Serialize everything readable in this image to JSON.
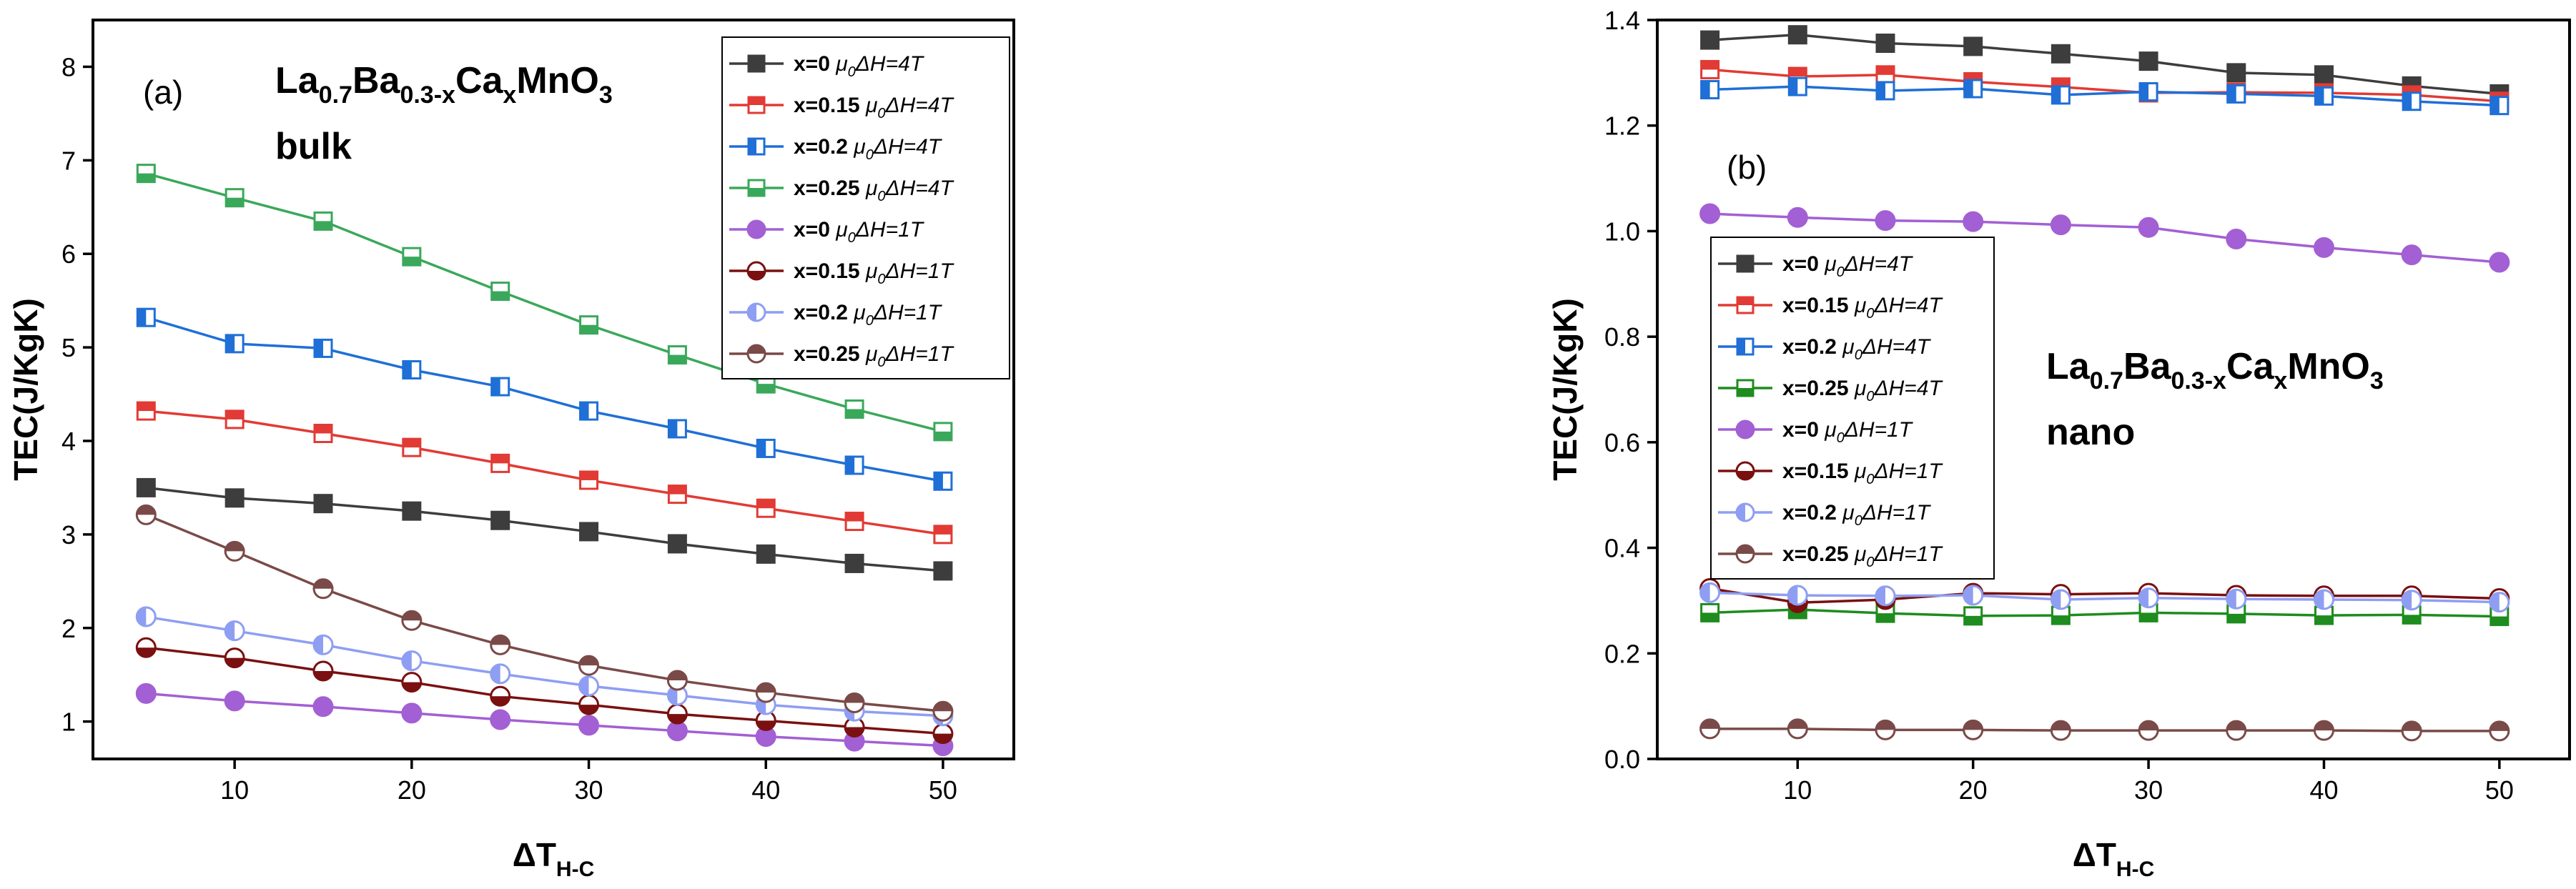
{
  "chart_data": [
    {
      "type": "line",
      "panel_label": "(a)",
      "title_formula": [
        "La",
        "0.7",
        "Ba",
        "0.3-x",
        "Ca",
        "x",
        "MnO",
        "3"
      ],
      "title_line2": "bulk",
      "xlabel": "ΔT",
      "xlabel_sub": "H-C",
      "ylabel": "TEC(J/KgK)",
      "xlim": [
        2,
        54
      ],
      "ylim": [
        0.6,
        8.5
      ],
      "xticks": [
        10,
        20,
        30,
        40,
        50
      ],
      "yticks": [
        1,
        2,
        3,
        4,
        5,
        6,
        7,
        8
      ],
      "ytick_decimals": 0,
      "legend_position": "top-right",
      "x": [
        5,
        10,
        15,
        20,
        25,
        30,
        35,
        40,
        45,
        50
      ],
      "series": [
        {
          "name": "x=0",
          "field": "μ0ΔH=4T",
          "color": "#3d3d3d",
          "marker": "square-filled",
          "values": [
            3.5,
            3.39,
            3.33,
            3.25,
            3.15,
            3.03,
            2.9,
            2.79,
            2.69,
            2.61
          ]
        },
        {
          "name": "x=0.15",
          "field": "μ0ΔH=4T",
          "color": "#e23a34",
          "marker": "square-top",
          "values": [
            4.32,
            4.23,
            4.08,
            3.93,
            3.76,
            3.58,
            3.43,
            3.28,
            3.14,
            3.0
          ]
        },
        {
          "name": "x=0.2",
          "field": "μ0ΔH=4T",
          "color": "#1f6fd6",
          "marker": "square-left",
          "values": [
            5.32,
            5.04,
            4.99,
            4.76,
            4.58,
            4.32,
            4.13,
            3.92,
            3.74,
            3.57
          ]
        },
        {
          "name": "x=0.25",
          "field": "μ0ΔH=4T",
          "color": "#3aa85a",
          "marker": "square-bottom",
          "values": [
            6.86,
            6.6,
            6.35,
            5.97,
            5.6,
            5.24,
            4.92,
            4.61,
            4.34,
            4.1
          ]
        },
        {
          "name": "x=0",
          "field": "μ0ΔH=1T",
          "color": "#a35fd4",
          "marker": "circle-filled",
          "values": [
            1.3,
            1.22,
            1.16,
            1.09,
            1.02,
            0.96,
            0.9,
            0.84,
            0.79,
            0.74
          ]
        },
        {
          "name": "x=0.15",
          "field": "μ0ΔH=1T",
          "color": "#7a1010",
          "marker": "circle-bottom",
          "values": [
            1.79,
            1.68,
            1.54,
            1.42,
            1.27,
            1.18,
            1.08,
            1.01,
            0.94,
            0.87
          ]
        },
        {
          "name": "x=0.2",
          "field": "μ0ΔH=1T",
          "color": "#8e9ef2",
          "marker": "circle-left",
          "values": [
            2.12,
            1.97,
            1.82,
            1.65,
            1.51,
            1.38,
            1.28,
            1.18,
            1.11,
            1.06
          ]
        },
        {
          "name": "x=0.25",
          "field": "μ0ΔH=1T",
          "color": "#7a4a48",
          "marker": "circle-top",
          "values": [
            3.21,
            2.82,
            2.42,
            2.08,
            1.82,
            1.6,
            1.44,
            1.31,
            1.2,
            1.11
          ]
        }
      ]
    },
    {
      "type": "line",
      "panel_label": "(b)",
      "title_formula": [
        "La",
        "0.7",
        "Ba",
        "0.3-x",
        "Ca",
        "x",
        "MnO",
        "3"
      ],
      "title_line2": "nano",
      "xlabel": "ΔT",
      "xlabel_sub": "H-C",
      "ylabel": "TEC(J/KgK)",
      "xlim": [
        2,
        54
      ],
      "ylim": [
        0.0,
        1.4
      ],
      "xticks": [
        10,
        20,
        30,
        40,
        50
      ],
      "yticks": [
        0.0,
        0.2,
        0.4,
        0.6,
        0.8,
        1.0,
        1.2,
        1.4
      ],
      "ytick_decimals": 1,
      "legend_position": "center-left",
      "x": [
        5,
        10,
        15,
        20,
        25,
        30,
        35,
        40,
        45,
        50
      ],
      "series": [
        {
          "name": "x=0",
          "field": "μ0ΔH=4T",
          "color": "#3d3d3d",
          "marker": "square-filled",
          "values": [
            1.362,
            1.372,
            1.356,
            1.35,
            1.336,
            1.322,
            1.3,
            1.296,
            1.275,
            1.26
          ]
        },
        {
          "name": "x=0.15",
          "field": "μ0ΔH=4T",
          "color": "#e23a34",
          "marker": "square-top",
          "values": [
            1.306,
            1.293,
            1.296,
            1.283,
            1.273,
            1.262,
            1.263,
            1.262,
            1.258,
            1.246
          ]
        },
        {
          "name": "x=0.2",
          "field": "μ0ΔH=4T",
          "color": "#1f6fd6",
          "marker": "square-left",
          "values": [
            1.268,
            1.274,
            1.266,
            1.27,
            1.258,
            1.264,
            1.26,
            1.256,
            1.246,
            1.238
          ]
        },
        {
          "name": "x=0.25",
          "field": "μ0ΔH=4T",
          "color": "#1e8c1e",
          "marker": "square-bottom",
          "values": [
            0.277,
            0.283,
            0.276,
            0.271,
            0.272,
            0.277,
            0.275,
            0.272,
            0.273,
            0.27
          ]
        },
        {
          "name": "x=0",
          "field": "μ0ΔH=1T",
          "color": "#a35fd4",
          "marker": "circle-filled",
          "values": [
            1.033,
            1.026,
            1.02,
            1.018,
            1.012,
            1.007,
            0.985,
            0.969,
            0.955,
            0.941
          ]
        },
        {
          "name": "x=0.15",
          "field": "μ0ΔH=1T",
          "color": "#7a1010",
          "marker": "circle-bottom",
          "values": [
            0.323,
            0.296,
            0.302,
            0.314,
            0.312,
            0.314,
            0.31,
            0.309,
            0.309,
            0.304
          ]
        },
        {
          "name": "x=0.2",
          "field": "μ0ΔH=1T",
          "color": "#8e9ef2",
          "marker": "circle-left",
          "values": [
            0.315,
            0.31,
            0.309,
            0.31,
            0.302,
            0.305,
            0.303,
            0.302,
            0.301,
            0.297
          ]
        },
        {
          "name": "x=0.25",
          "field": "μ0ΔH=1T",
          "color": "#7a4a48",
          "marker": "circle-top",
          "values": [
            0.057,
            0.057,
            0.055,
            0.055,
            0.054,
            0.054,
            0.054,
            0.054,
            0.053,
            0.053
          ]
        }
      ]
    }
  ]
}
